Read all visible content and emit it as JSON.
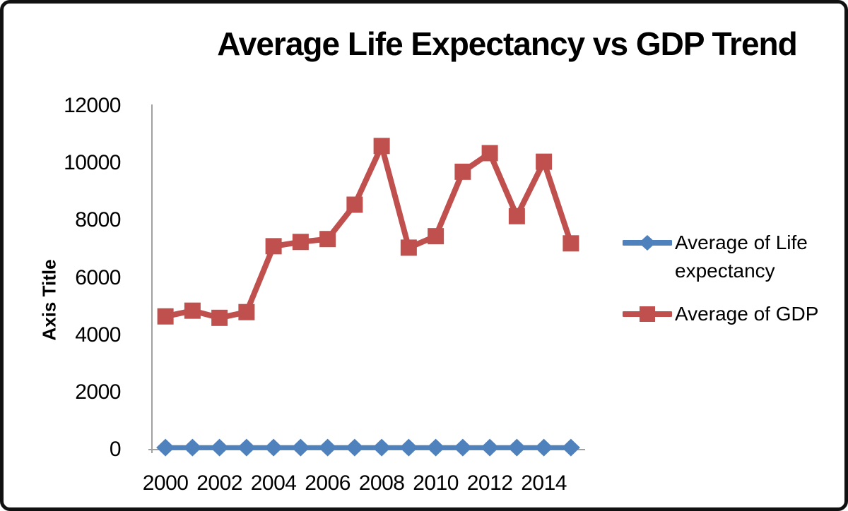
{
  "chart_data": {
    "type": "line",
    "title": "Average Life Expectancy vs GDP Trend",
    "y_axis_title": "Axis Title",
    "xlabel": "",
    "ylabel": "Axis Title",
    "categories": [
      2000,
      2001,
      2002,
      2003,
      2004,
      2005,
      2006,
      2007,
      2008,
      2009,
      2010,
      2011,
      2012,
      2013,
      2014,
      2015
    ],
    "x_tick_labels": [
      "2000",
      "2002",
      "2004",
      "2006",
      "2008",
      "2010",
      "2012",
      "2014"
    ],
    "y_tick_labels": [
      "0",
      "2000",
      "4000",
      "6000",
      "8000",
      "10000",
      "12000"
    ],
    "ylim": [
      0,
      12000
    ],
    "grid": false,
    "legend_position": "right",
    "axis_color": "#a0a0a0",
    "text_color": "#000000",
    "series": [
      {
        "name": "Average of Life expectancy",
        "color": "#4F81BD",
        "marker": "diamond",
        "values": [
          70,
          70,
          70,
          70,
          70,
          70,
          70,
          70,
          70,
          70,
          70,
          70,
          70,
          70,
          70,
          70
        ]
      },
      {
        "name": "Average of GDP",
        "color": "#C0504D",
        "marker": "square",
        "values": [
          4650,
          4850,
          4600,
          4800,
          7100,
          7250,
          7350,
          8550,
          10600,
          7050,
          7450,
          9700,
          10350,
          8150,
          10050,
          7200
        ]
      }
    ]
  }
}
